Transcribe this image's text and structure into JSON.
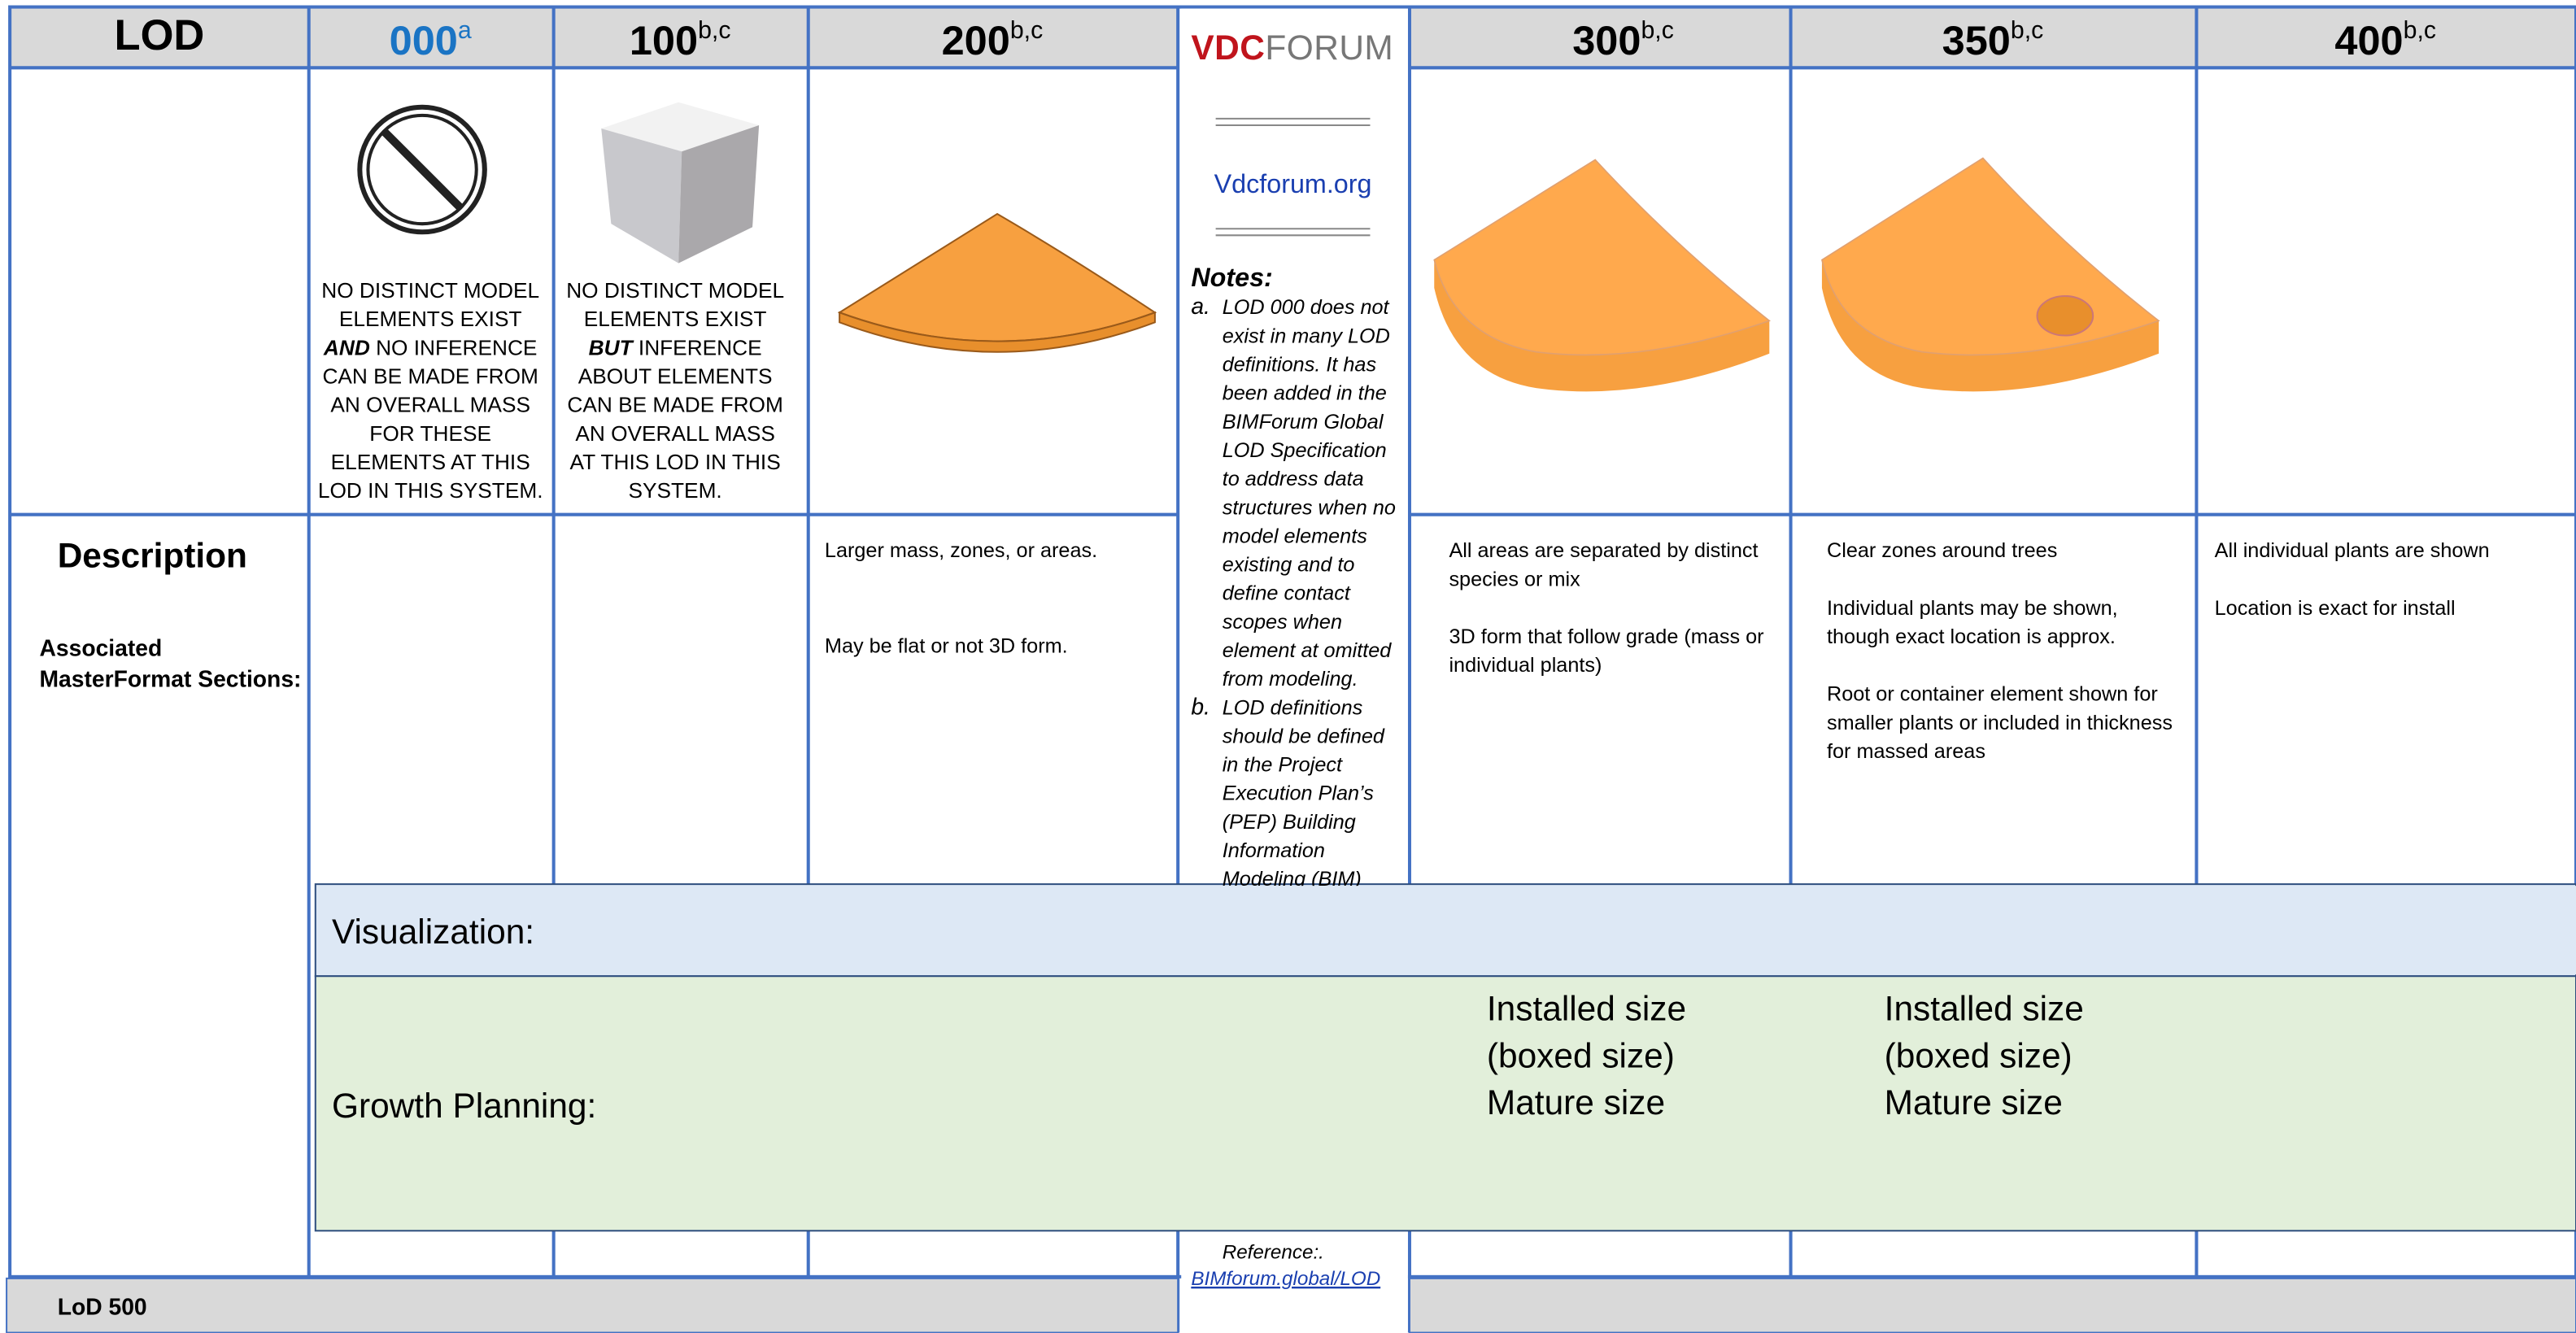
{
  "header": {
    "lod": "LOD",
    "columns": [
      {
        "label": "000",
        "sup": "a"
      },
      {
        "label": "100",
        "sup": "b,c"
      },
      {
        "label": "200",
        "sup": "b,c"
      },
      {
        "label": "300",
        "sup": "b,c"
      },
      {
        "label": "350",
        "sup": "b,c"
      },
      {
        "label": "400",
        "sup": "b,c"
      }
    ],
    "logo": {
      "vdc": "VDC",
      "forum": "FORUM"
    }
  },
  "captions": {
    "lod000": {
      "lines": [
        "NO DISTINCT MODEL",
        "ELEMENTS EXIST",
        {
          "strong": "AND",
          "rest": " NO INFERENCE"
        },
        "CAN BE MADE FROM",
        "AN OVERALL MASS",
        "FOR THESE",
        "ELEMENTS AT THIS",
        "LOD IN THIS SYSTEM."
      ]
    },
    "lod100": {
      "lines": [
        "NO DISTINCT MODEL",
        "ELEMENTS EXIST",
        {
          "strong": "BUT",
          "rest": " INFERENCE"
        },
        "ABOUT ELEMENTS",
        "CAN BE MADE FROM",
        "AN OVERALL MASS",
        "AT THIS LOD IN THIS",
        "SYSTEM."
      ]
    }
  },
  "sidebar": {
    "description": "Description",
    "sections": [
      "Associated",
      "MasterFormat Sections:"
    ]
  },
  "notes": {
    "site": "Vdcforum.org",
    "title": "Notes:",
    "items": [
      {
        "marker": "a.",
        "lines": [
          "LOD 000 does not",
          "exist in many LOD",
          "definitions. It has",
          "been added in the",
          "BIMForum Global",
          "LOD Specification",
          "to address data",
          "structures when no",
          "model elements",
          "existing and to",
          "define contact",
          "scopes when",
          "element at omitted",
          "from modeling."
        ]
      },
      {
        "marker": "b.",
        "lines": [
          "LOD definitions",
          "should be defined",
          "in the Project",
          "Execution Plan’s",
          "(PEP) Building",
          "Information",
          "Modeling (BIM)"
        ]
      }
    ],
    "reference": "Reference:.",
    "reference_link": "BIMforum.global/LOD"
  },
  "descriptions": {
    "lod200": [
      [
        "Larger mass, zones, or areas."
      ],
      [
        "May be flat or not 3D form."
      ]
    ],
    "lod300": [
      [
        "All areas are separated by distinct",
        "species or mix"
      ],
      [
        "3D form that follow grade (mass or",
        "individual plants)"
      ]
    ],
    "lod350": [
      [
        "Clear zones around trees"
      ],
      [
        "Individual plants may be shown,",
        "though exact location is approx."
      ],
      [
        "Root or container element shown for",
        "smaller plants or included in thickness",
        "for massed areas"
      ]
    ],
    "lod400": [
      [
        "All individual plants are shown"
      ],
      [
        "Location is exact for install"
      ]
    ]
  },
  "overlay": {
    "visualization": "Visualization:",
    "growth": "Growth Planning:",
    "growth_lod300": [
      "Installed size",
      "(boxed size)",
      "Mature size"
    ],
    "growth_lod350": [
      "Installed size",
      "(boxed size)",
      "Mature size"
    ]
  },
  "footer": {
    "label": "LoD 500"
  }
}
